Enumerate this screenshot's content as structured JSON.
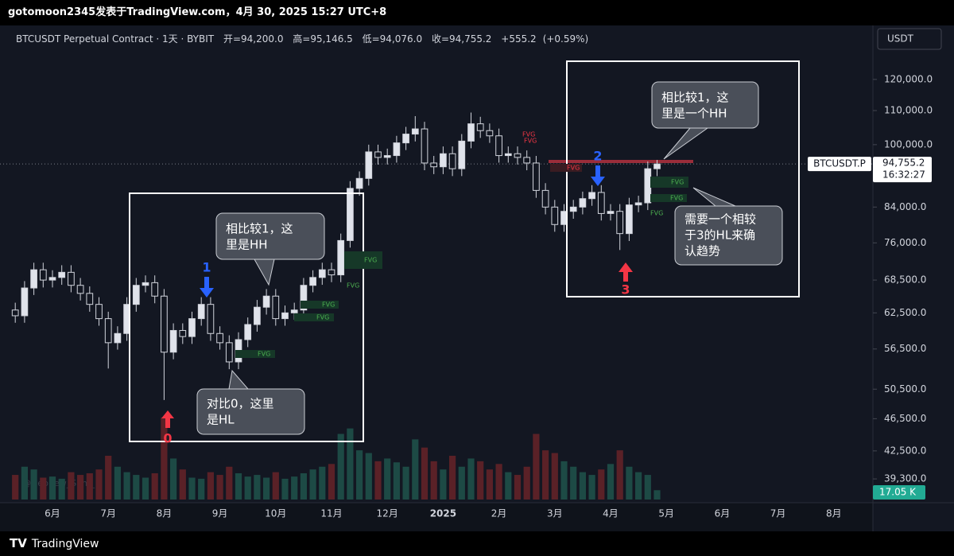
{
  "header": {
    "byline": "gotomoon2345发表于TradingView.com，4月 30, 2025 15:27 UTC+8"
  },
  "legend": {
    "symbol": "BTCUSDT Perpetual Contract · 1天 · BYBIT",
    "items": [
      {
        "label": "开=",
        "value": {
          "value": 94200,
          "label": "94,200.0"
        }
      },
      {
        "label": "高=",
        "value": {
          "value": 95146.5,
          "label": "95,146.5"
        }
      },
      {
        "label": "低=",
        "value": {
          "value": 94076,
          "label": "94,076.0"
        }
      },
      {
        "label": "收=",
        "value": {
          "value": 94755.2,
          "label": "94,755.2"
        }
      }
    ],
    "change": {
      "value": 555.2,
      "label": "+555.2"
    },
    "change_pct": {
      "value": 0.59,
      "label": "(+0.59%)"
    }
  },
  "chart_data": {
    "type": "candlestick",
    "log_scale": true,
    "currency": "USDT",
    "up_color": "#e0e3eb",
    "down_color": "#131722",
    "categories": [
      null,
      null,
      null,
      null,
      "6月",
      null,
      null,
      null,
      null,
      null,
      "7月",
      null,
      null,
      null,
      null,
      null,
      "8月",
      null,
      null,
      null,
      null,
      null,
      "9月",
      null,
      null,
      null,
      null,
      null,
      "10月",
      null,
      null,
      null,
      null,
      null,
      "11月",
      null,
      null,
      null,
      null,
      null,
      "12月",
      null,
      null,
      null,
      null,
      null,
      "2025",
      null,
      null,
      null,
      null,
      null,
      "2月",
      null,
      null,
      null,
      null,
      null,
      "3月",
      null,
      null,
      null,
      null,
      null,
      "4月",
      null,
      null,
      null,
      null,
      null,
      "5月",
      null,
      null,
      null,
      null,
      null,
      "6月",
      null,
      null,
      null,
      null,
      null,
      "7月",
      null,
      null,
      null,
      null,
      null,
      "8月",
      null,
      null
    ],
    "open": [
      63000,
      62000,
      67000,
      70500,
      68500,
      69000,
      70000,
      67500,
      66000,
      64000,
      61500,
      57500,
      59000,
      64000,
      67500,
      68000,
      65500,
      56000,
      59500,
      58500,
      61500,
      64000,
      59000,
      57500,
      54500,
      58000,
      60500,
      63500,
      65500,
      61500,
      62500,
      63000,
      67500,
      69000,
      70500,
      69500,
      76500,
      88500,
      91000,
      98000,
      96500,
      97000,
      100500,
      103000,
      104500,
      95000,
      94000,
      97500,
      93500,
      101000,
      106000,
      104000,
      102500,
      97000,
      97500,
      96500,
      95000,
      88000,
      84000,
      80000,
      83000,
      84000,
      86000,
      87500,
      82500,
      83000,
      78000,
      84500,
      85000,
      93500,
      null,
      null,
      null,
      null,
      null,
      null,
      null,
      null,
      null,
      null,
      null,
      null,
      null,
      null,
      null,
      null,
      null,
      null,
      null,
      null,
      null
    ],
    "high": [
      64300,
      68300,
      71900,
      71900,
      70400,
      71400,
      71400,
      68900,
      67300,
      65300,
      62700,
      60200,
      65300,
      68900,
      69400,
      69400,
      66800,
      60700,
      60700,
      62700,
      65300,
      65300,
      60200,
      58700,
      59200,
      61700,
      64800,
      66800,
      66800,
      63800,
      64300,
      68900,
      70400,
      71900,
      71900,
      78000,
      90300,
      92800,
      100000,
      100000,
      98900,
      102500,
      105100,
      108300,
      106600,
      96900,
      99500,
      99500,
      103000,
      109400,
      108100,
      106100,
      104600,
      99500,
      99500,
      98400,
      96900,
      89800,
      85700,
      84700,
      85700,
      87700,
      89300,
      89300,
      84700,
      84700,
      86200,
      86700,
      95400,
      95800,
      null,
      null,
      null,
      null,
      null,
      null,
      null,
      null,
      null,
      null,
      null,
      null,
      null,
      null,
      null,
      null,
      null,
      null,
      null,
      null,
      null
    ],
    "low": [
      60800,
      60800,
      65700,
      67100,
      67100,
      67600,
      66200,
      64700,
      62700,
      60300,
      53500,
      56400,
      57800,
      62700,
      66200,
      64200,
      49000,
      54900,
      57300,
      57300,
      60300,
      57800,
      56400,
      53400,
      53400,
      56800,
      59300,
      62200,
      60300,
      60300,
      61300,
      61700,
      66200,
      67600,
      68100,
      68100,
      75000,
      86700,
      89200,
      94600,
      94600,
      95100,
      98500,
      100900,
      93100,
      92100,
      92100,
      91600,
      91600,
      99000,
      101900,
      100500,
      95100,
      95100,
      94600,
      93100,
      86200,
      82300,
      78400,
      78400,
      81300,
      82300,
      84300,
      80900,
      80900,
      74500,
      76400,
      82800,
      83300,
      91600,
      null,
      null,
      null,
      null,
      null,
      null,
      null,
      null,
      null,
      null,
      null,
      null,
      null,
      null,
      null,
      null,
      null,
      null,
      null,
      null,
      null
    ],
    "close": [
      62000,
      67000,
      70500,
      68500,
      69000,
      70000,
      67500,
      66000,
      64000,
      61500,
      57500,
      59000,
      64000,
      67500,
      68000,
      65500,
      56000,
      59500,
      58500,
      61500,
      64000,
      59000,
      57500,
      54500,
      58000,
      60500,
      63500,
      65500,
      61500,
      62500,
      63000,
      67500,
      69000,
      70500,
      69500,
      76500,
      88500,
      91000,
      98000,
      96500,
      97000,
      100500,
      103000,
      104500,
      95000,
      94000,
      97500,
      93500,
      101000,
      106000,
      104000,
      102500,
      97000,
      97500,
      96500,
      95000,
      88000,
      84000,
      80000,
      83000,
      84000,
      86000,
      87500,
      82500,
      83000,
      78000,
      84500,
      85000,
      93500,
      94755.2,
      null,
      null,
      null,
      null,
      null,
      null,
      null,
      null,
      null,
      null,
      null,
      null,
      null,
      null,
      null,
      null,
      null,
      null,
      null,
      null,
      null
    ],
    "volume": {
      "values": [
        45,
        60,
        55,
        40,
        42,
        38,
        50,
        45,
        48,
        55,
        80,
        60,
        50,
        45,
        40,
        48,
        150,
        75,
        55,
        40,
        38,
        50,
        45,
        60,
        48,
        42,
        45,
        40,
        50,
        38,
        42,
        48,
        55,
        60,
        65,
        120,
        130,
        90,
        85,
        70,
        75,
        68,
        60,
        110,
        95,
        70,
        55,
        80,
        60,
        75,
        70,
        55,
        65,
        50,
        45,
        60,
        120,
        90,
        85,
        70,
        60,
        50,
        45,
        55,
        65,
        90,
        60,
        50,
        45,
        17.05,
        null,
        null,
        null,
        null,
        null,
        null,
        null,
        null,
        null,
        null,
        null,
        null,
        null,
        null,
        null,
        null,
        null,
        null,
        null,
        null,
        null
      ],
      "value_labels": [
        null,
        null,
        null,
        null,
        null,
        null,
        null,
        null,
        null,
        null,
        null,
        null,
        null,
        null,
        null,
        null,
        null,
        null,
        null,
        null,
        null,
        null,
        null,
        null,
        null,
        null,
        null,
        null,
        null,
        null,
        null,
        null,
        null,
        null,
        null,
        null,
        null,
        null,
        null,
        null,
        null,
        null,
        null,
        null,
        null,
        null,
        null,
        null,
        null,
        null,
        null,
        null,
        null,
        null,
        null,
        null,
        null,
        null,
        null,
        null,
        null,
        null,
        null,
        null,
        null,
        null,
        null,
        null,
        null,
        "17.05 K",
        null,
        null,
        null,
        null,
        null,
        null,
        null,
        null,
        null,
        null,
        null,
        null,
        null,
        null,
        null,
        null,
        null,
        null,
        null,
        null,
        null
      ],
      "ylim": [
        0,
        160
      ],
      "up_color": "#1d4a45",
      "down_color": "#5a2127"
    },
    "ylim": [
      37100,
      138600
    ],
    "yticks": [
      {
        "value": 120000,
        "label": "120,000.0"
      },
      {
        "value": 110000,
        "label": "110,000.0"
      },
      {
        "value": 100000,
        "label": "100,000.0"
      },
      {
        "value": 84000,
        "label": "84,000.0"
      },
      {
        "value": 76000,
        "label": "76,000.0"
      },
      {
        "value": 68500,
        "label": "68,500.0"
      },
      {
        "value": 62500,
        "label": "62,500.0"
      },
      {
        "value": 56500,
        "label": "56,500.0"
      },
      {
        "value": 50500,
        "label": "50,500.0"
      },
      {
        "value": 46500,
        "label": "46,500.0"
      },
      {
        "value": 42500,
        "label": "42,500.0"
      },
      {
        "value": 39300,
        "label": "39,300.0"
      }
    ],
    "current": {
      "symbol": "BTCUSDT.P",
      "price": {
        "value": 94755.2,
        "label": "94,755.2"
      },
      "countdown": "16:32:27"
    },
    "resistance": 95400,
    "watermark": "@Nephew_Sam_",
    "annotations": {
      "markers": [
        "0",
        "1",
        "2",
        "3"
      ],
      "callouts": [
        [
          "相比较1，这",
          "里是HH"
        ],
        [
          "对比0，这里",
          "是HL"
        ],
        [
          "相比较1，这",
          "里是一个HH"
        ],
        [
          "需要一个相较",
          "于3的HL来确",
          "认趋势"
        ]
      ],
      "fvg": [
        "FVG",
        "FVG",
        "FVG",
        "FVG",
        "FVG",
        "FVG",
        "FVG",
        "FVG",
        "FVG",
        "FVG",
        "FVG"
      ]
    }
  },
  "footer": {
    "brand": "TradingView"
  }
}
